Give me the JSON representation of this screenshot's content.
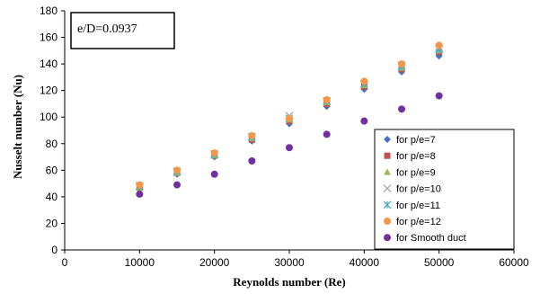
{
  "chart_data": {
    "type": "scatter",
    "title": "",
    "xlabel": "Reynolds number (Re)",
    "ylabel": "Nusselt number (Nu)",
    "xlim": [
      0,
      60000
    ],
    "ylim": [
      0,
      180
    ],
    "x_ticks": [
      0,
      10000,
      20000,
      30000,
      40000,
      50000,
      60000
    ],
    "y_ticks": [
      0,
      20,
      40,
      60,
      80,
      100,
      120,
      140,
      160,
      180
    ],
    "grid": false,
    "legend_position": "bottom-right",
    "annotation": "e/D=0.0937",
    "x": [
      10000,
      15000,
      20000,
      25000,
      30000,
      35000,
      40000,
      45000,
      50000
    ],
    "series": [
      {
        "name": "for p/e=7",
        "marker": "diamond",
        "color": "#4472C4",
        "values": [
          46,
          57,
          70,
          82,
          95,
          108,
          121,
          134,
          146
        ]
      },
      {
        "name": "for p/e=8",
        "marker": "square",
        "color": "#C0504D",
        "values": [
          47,
          58,
          71,
          83,
          97,
          110,
          123,
          136,
          149
        ]
      },
      {
        "name": "for p/e=9",
        "marker": "triangle",
        "color": "#9BBB59",
        "values": [
          47,
          58,
          71,
          84,
          98,
          111,
          124,
          137,
          150
        ]
      },
      {
        "name": "for p/e=10",
        "marker": "x",
        "color": "#A5A5A5",
        "values": [
          48,
          59,
          72,
          85,
          101,
          112,
          125,
          139,
          152
        ]
      },
      {
        "name": "for p/e=11",
        "marker": "star",
        "color": "#4BACC6",
        "values": [
          48,
          59,
          72,
          85,
          99,
          112,
          125,
          138,
          151
        ]
      },
      {
        "name": "for p/e=12",
        "marker": "circle",
        "color": "#F79646",
        "values": [
          49,
          60,
          73,
          86,
          99,
          113,
          127,
          140,
          154
        ]
      },
      {
        "name": "for Smooth duct",
        "marker": "circle",
        "color": "#7030A0",
        "values": [
          42,
          49,
          57,
          67,
          77,
          87,
          97,
          106,
          116
        ]
      }
    ]
  }
}
